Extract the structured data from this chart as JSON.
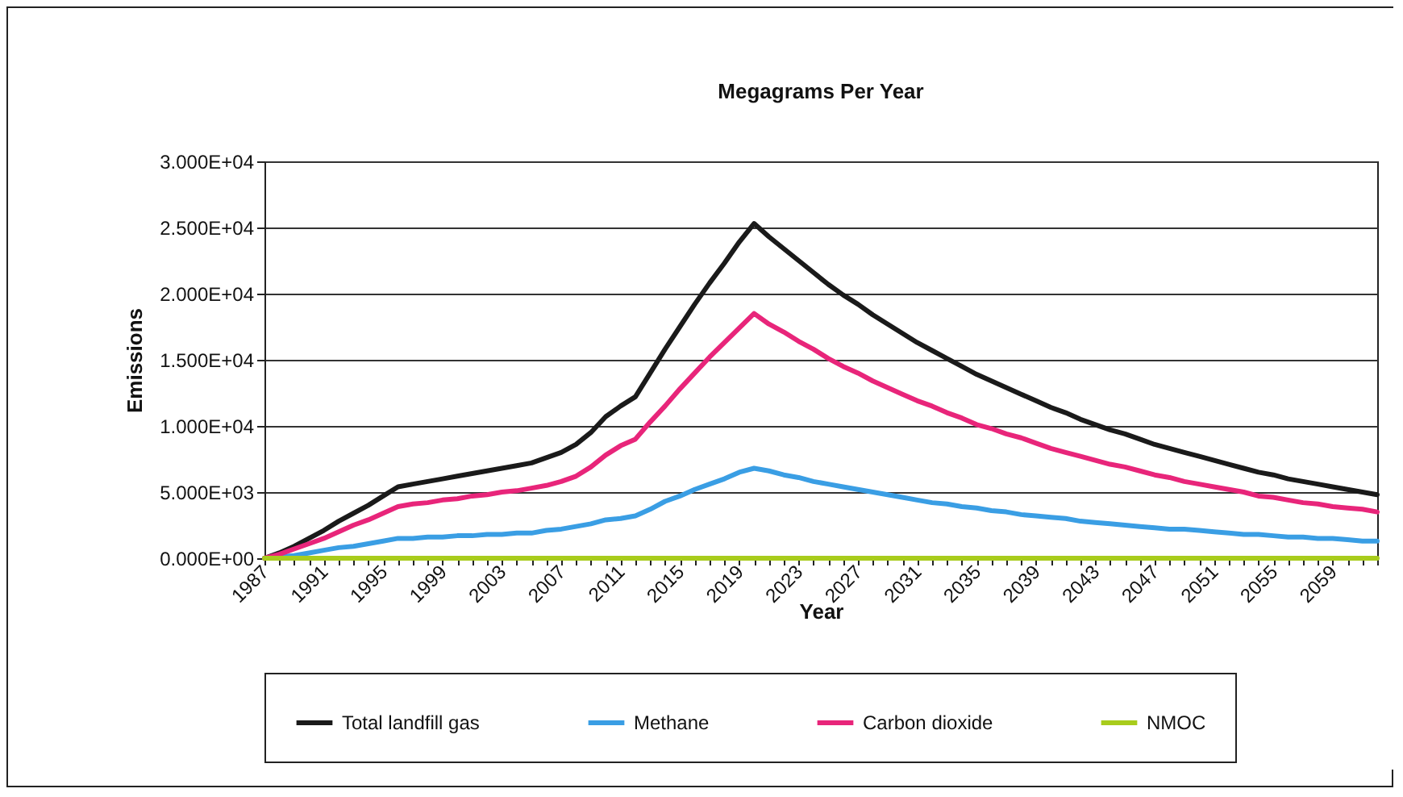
{
  "chart_data": {
    "type": "line",
    "title": "Megagrams Per Year",
    "xlabel": "Year",
    "ylabel": "Emissions",
    "categories": [
      "1987",
      null,
      null,
      null,
      "1991",
      null,
      null,
      null,
      "1995",
      null,
      null,
      null,
      "1999",
      null,
      null,
      null,
      "2003",
      null,
      null,
      null,
      "2007",
      null,
      null,
      null,
      "2011",
      null,
      null,
      null,
      "2015",
      null,
      null,
      null,
      "2019",
      null,
      null,
      null,
      "2023",
      null,
      null,
      null,
      "2027",
      null,
      null,
      null,
      "2031",
      null,
      null,
      null,
      "2035",
      null,
      null,
      null,
      "2039",
      null,
      null,
      null,
      "2043",
      null,
      null,
      null,
      "2047",
      null,
      null,
      null,
      "2051",
      null,
      null,
      null,
      "2055",
      null,
      null,
      null,
      "2059",
      null,
      null,
      null
    ],
    "series": [
      {
        "name": "Total landfill gas",
        "color": "#1a1a1a",
        "values": [
          0,
          400,
          900,
          1500,
          2100,
          2800,
          3400,
          4000,
          4700,
          5400,
          5600,
          5800,
          6000,
          6200,
          6400,
          6600,
          6800,
          7000,
          7200,
          7600,
          8000,
          8600,
          9500,
          10700,
          11500,
          12200,
          14000,
          15800,
          17500,
          19200,
          20800,
          22300,
          23900,
          25300,
          24300,
          23400,
          22500,
          21600,
          20700,
          19900,
          19200,
          18400,
          17700,
          17000,
          16300,
          15700,
          15100,
          14500,
          13900,
          13400,
          12900,
          12400,
          11900,
          11400,
          11000,
          10500,
          10100,
          9700,
          9400,
          9000,
          8600,
          8300,
          8000,
          7700,
          7400,
          7100,
          6800,
          6500,
          6300,
          6000,
          5800,
          5600,
          5400,
          5200,
          5000,
          4800
        ]
      },
      {
        "name": "Methane",
        "color": "#3a9ee4",
        "values": [
          0,
          100,
          200,
          400,
          600,
          800,
          900,
          1100,
          1300,
          1500,
          1500,
          1600,
          1600,
          1700,
          1700,
          1800,
          1800,
          1900,
          1900,
          2100,
          2200,
          2400,
          2600,
          2900,
          3000,
          3200,
          3700,
          4300,
          4700,
          5200,
          5600,
          6000,
          6500,
          6800,
          6600,
          6300,
          6100,
          5800,
          5600,
          5400,
          5200,
          5000,
          4800,
          4600,
          4400,
          4200,
          4100,
          3900,
          3800,
          3600,
          3500,
          3300,
          3200,
          3100,
          3000,
          2800,
          2700,
          2600,
          2500,
          2400,
          2300,
          2200,
          2200,
          2100,
          2000,
          1900,
          1800,
          1800,
          1700,
          1600,
          1600,
          1500,
          1500,
          1400,
          1300,
          1300
        ]
      },
      {
        "name": "Carbon dioxide",
        "color": "#e8257a",
        "values": [
          0,
          300,
          700,
          1100,
          1500,
          2000,
          2500,
          2900,
          3400,
          3900,
          4100,
          4200,
          4400,
          4500,
          4700,
          4800,
          5000,
          5100,
          5300,
          5500,
          5800,
          6200,
          6900,
          7800,
          8500,
          9000,
          10300,
          11500,
          12800,
          14000,
          15200,
          16300,
          17400,
          18500,
          17700,
          17100,
          16400,
          15800,
          15100,
          14500,
          14000,
          13400,
          12900,
          12400,
          11900,
          11500,
          11000,
          10600,
          10100,
          9800,
          9400,
          9100,
          8700,
          8300,
          8000,
          7700,
          7400,
          7100,
          6900,
          6600,
          6300,
          6100,
          5800,
          5600,
          5400,
          5200,
          5000,
          4700,
          4600,
          4400,
          4200,
          4100,
          3900,
          3800,
          3700,
          3500
        ]
      },
      {
        "name": "NMOC",
        "color": "#a8cc1c",
        "values": [
          0,
          0,
          0,
          0,
          0,
          0,
          0,
          0,
          0,
          0,
          0,
          0,
          0,
          0,
          0,
          0,
          0,
          0,
          0,
          0,
          0,
          0,
          0,
          0,
          0,
          0,
          0,
          0,
          0,
          0,
          0,
          0,
          0,
          0,
          0,
          0,
          0,
          0,
          0,
          0,
          0,
          0,
          0,
          0,
          0,
          0,
          0,
          0,
          0,
          0,
          0,
          0,
          0,
          0,
          0,
          0,
          0,
          0,
          0,
          0,
          0,
          0,
          0,
          0,
          0,
          0,
          0,
          0,
          0,
          0,
          0,
          0,
          0,
          0,
          0,
          0
        ]
      }
    ],
    "ylim": [
      0,
      30000
    ],
    "yticks": [
      {
        "value": 0,
        "label": "0.000E+00"
      },
      {
        "value": 5000,
        "label": "5.000E+03"
      },
      {
        "value": 10000,
        "label": "1.000E+04"
      },
      {
        "value": 15000,
        "label": "1.500E+04"
      },
      {
        "value": 20000,
        "label": "2.000E+04"
      },
      {
        "value": 25000,
        "label": "2.500E+04"
      },
      {
        "value": 30000,
        "label": "3.000E+04"
      }
    ],
    "grid": "y",
    "legend": "bottom",
    "marker": "none",
    "line_style": "solid"
  }
}
